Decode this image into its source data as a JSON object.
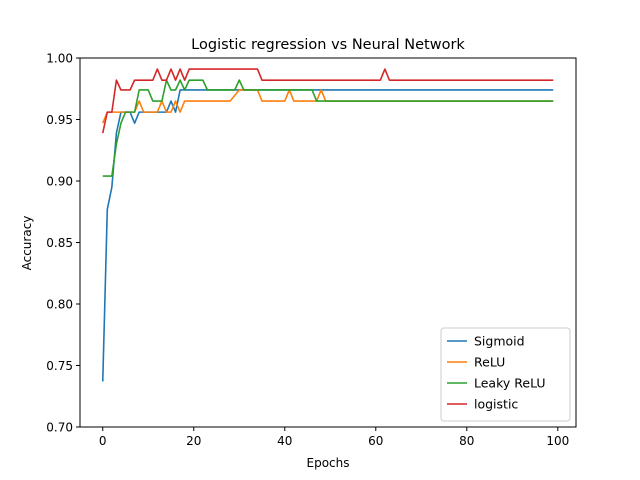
{
  "chart_data": {
    "type": "line",
    "title": "Logistic regression vs Neural Network",
    "xlabel": "Epochs",
    "ylabel": "Accuracy",
    "xlim": [
      -5,
      104
    ],
    "ylim": [
      0.7,
      1.0
    ],
    "xticks": [
      0,
      20,
      40,
      60,
      80,
      100
    ],
    "xtick_labels": [
      "0",
      "20",
      "40",
      "60",
      "80",
      "100"
    ],
    "yticks": [
      0.7,
      0.75,
      0.8,
      0.85,
      0.9,
      0.95,
      1.0
    ],
    "ytick_labels": [
      "0.70",
      "0.75",
      "0.80",
      "0.85",
      "0.90",
      "0.95",
      "1.00"
    ],
    "grid": false,
    "legend": "lower-right",
    "series": [
      {
        "name": "Sigmoid",
        "color": "#1f77b4",
        "points": [
          [
            0,
            0.737
          ],
          [
            1,
            0.877
          ],
          [
            2,
            0.895
          ],
          [
            3,
            0.939
          ],
          [
            4,
            0.956
          ],
          [
            5,
            0.956
          ],
          [
            6,
            0.956
          ],
          [
            7,
            0.947
          ],
          [
            8,
            0.956
          ],
          [
            9,
            0.956
          ],
          [
            14,
            0.956
          ],
          [
            15,
            0.965
          ],
          [
            16,
            0.956
          ],
          [
            17,
            0.974
          ],
          [
            23,
            0.974
          ],
          [
            34,
            0.974
          ],
          [
            99,
            0.974
          ]
        ]
      },
      {
        "name": "ReLU",
        "color": "#ff7f0e",
        "points": [
          [
            0,
            0.947
          ],
          [
            1,
            0.956
          ],
          [
            6,
            0.956
          ],
          [
            7,
            0.956
          ],
          [
            8,
            0.965
          ],
          [
            9,
            0.956
          ],
          [
            12,
            0.956
          ],
          [
            13,
            0.965
          ],
          [
            14,
            0.956
          ],
          [
            15,
            0.956
          ],
          [
            16,
            0.965
          ],
          [
            17,
            0.956
          ],
          [
            18,
            0.965
          ],
          [
            28,
            0.965
          ],
          [
            30,
            0.974
          ],
          [
            33,
            0.974
          ],
          [
            34,
            0.974
          ],
          [
            35,
            0.965
          ],
          [
            40,
            0.965
          ],
          [
            41,
            0.974
          ],
          [
            42,
            0.965
          ],
          [
            47,
            0.965
          ],
          [
            48,
            0.974
          ],
          [
            49,
            0.965
          ],
          [
            99,
            0.965
          ]
        ]
      },
      {
        "name": "Leaky ReLU",
        "color": "#2ca02c",
        "points": [
          [
            0,
            0.904
          ],
          [
            2,
            0.904
          ],
          [
            3,
            0.93
          ],
          [
            4,
            0.947
          ],
          [
            5,
            0.956
          ],
          [
            7,
            0.956
          ],
          [
            8,
            0.974
          ],
          [
            10,
            0.974
          ],
          [
            11,
            0.965
          ],
          [
            13,
            0.965
          ],
          [
            14,
            0.982
          ],
          [
            15,
            0.974
          ],
          [
            16,
            0.974
          ],
          [
            17,
            0.982
          ],
          [
            18,
            0.974
          ],
          [
            19,
            0.982
          ],
          [
            22,
            0.982
          ],
          [
            23,
            0.974
          ],
          [
            29,
            0.974
          ],
          [
            30,
            0.982
          ],
          [
            31,
            0.974
          ],
          [
            46,
            0.974
          ],
          [
            47,
            0.965
          ],
          [
            48,
            0.965
          ],
          [
            49,
            0.965
          ],
          [
            99,
            0.965
          ]
        ]
      },
      {
        "name": "logistic",
        "color": "#d62728",
        "points": [
          [
            0,
            0.939
          ],
          [
            1,
            0.956
          ],
          [
            2,
            0.956
          ],
          [
            3,
            0.982
          ],
          [
            4,
            0.974
          ],
          [
            6,
            0.974
          ],
          [
            7,
            0.982
          ],
          [
            11,
            0.982
          ],
          [
            12,
            0.991
          ],
          [
            13,
            0.982
          ],
          [
            14,
            0.982
          ],
          [
            15,
            0.991
          ],
          [
            16,
            0.982
          ],
          [
            17,
            0.991
          ],
          [
            18,
            0.982
          ],
          [
            19,
            0.991
          ],
          [
            34,
            0.991
          ],
          [
            35,
            0.982
          ],
          [
            61,
            0.982
          ],
          [
            62,
            0.991
          ],
          [
            63,
            0.982
          ],
          [
            99,
            0.982
          ]
        ]
      }
    ]
  }
}
